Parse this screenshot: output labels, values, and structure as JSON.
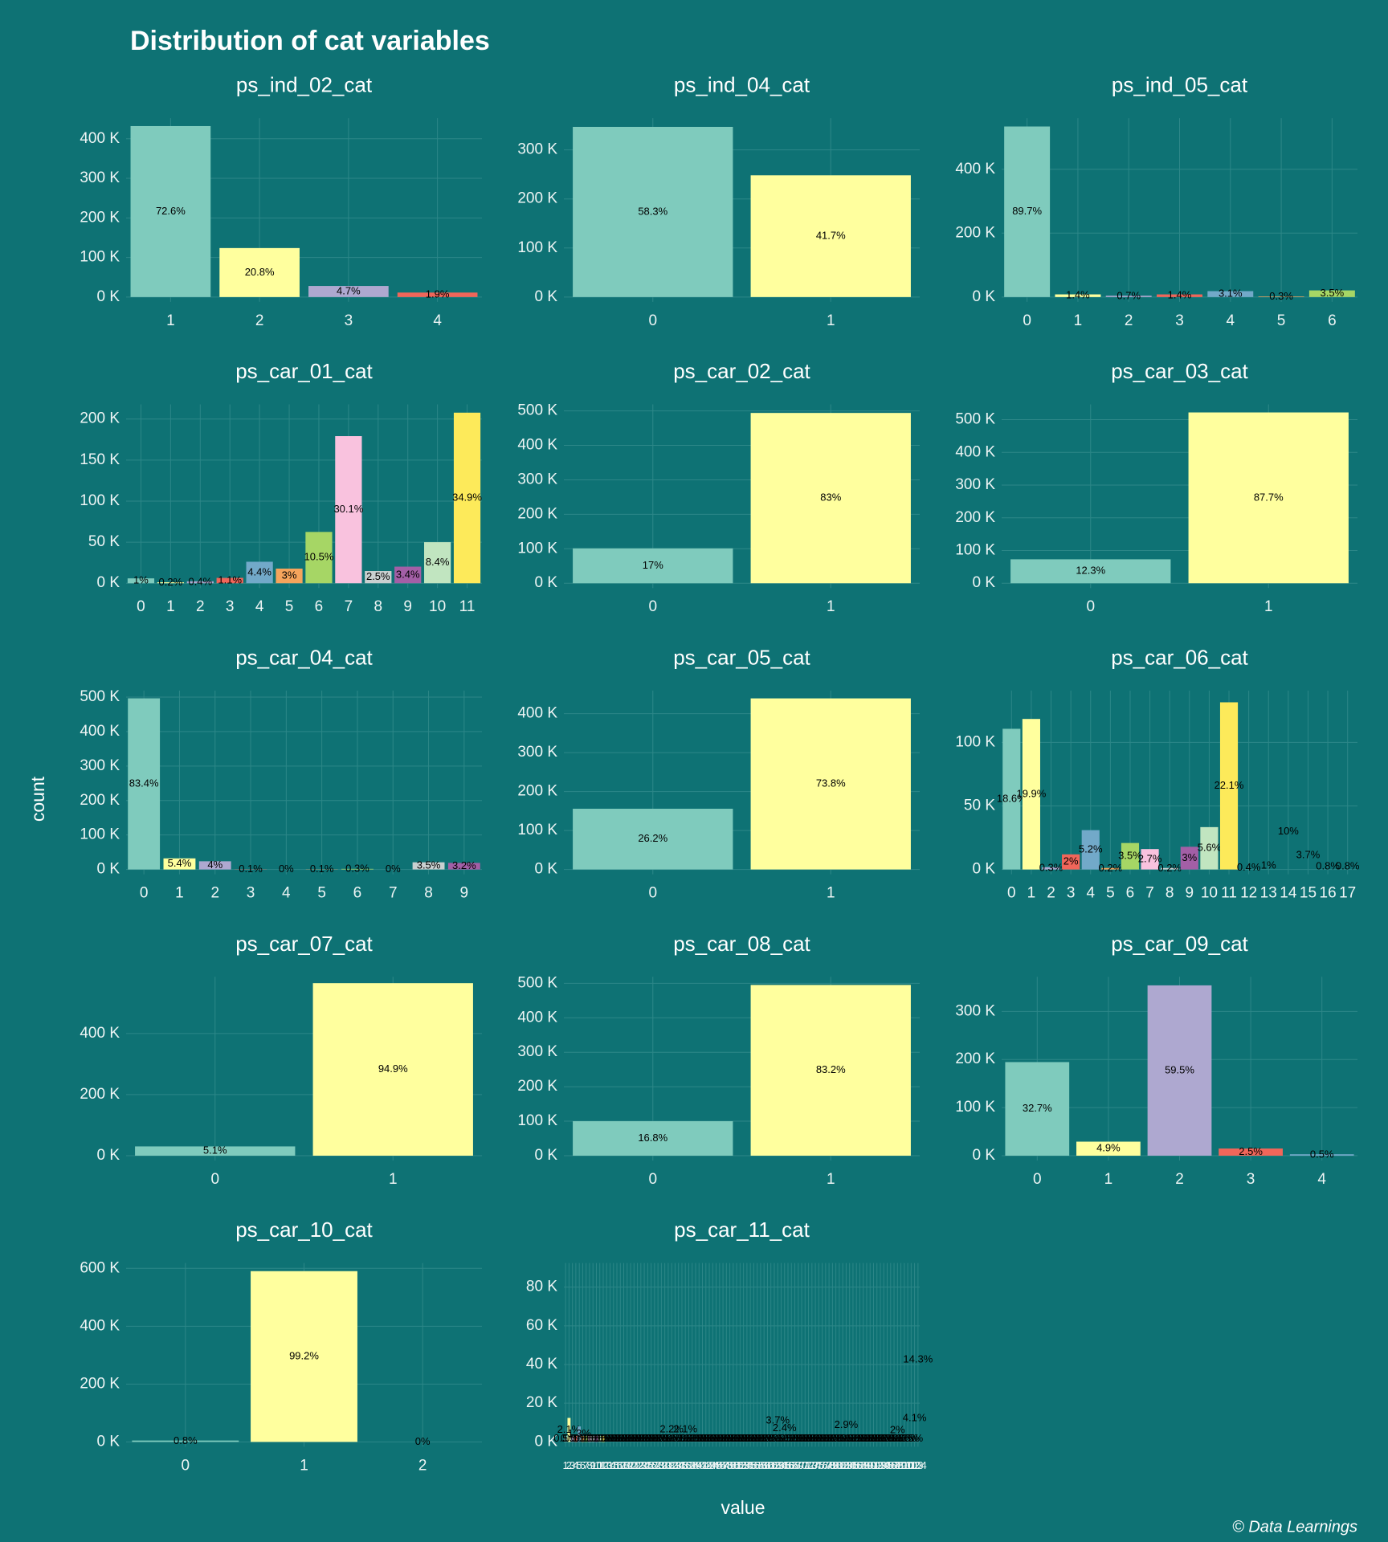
{
  "title": "Distribution of cat variables",
  "x_label": "value",
  "y_label": "count",
  "caption": "© Data Learnings",
  "palette": [
    "#7fcbbd",
    "#ffff9e",
    "#aea8d0",
    "#f0665a",
    "#72a9c9",
    "#f5a45c",
    "#a6d665",
    "#f9c2de",
    "#c9d0d0",
    "#a35fa6",
    "#c1e5c0",
    "#fdea5a"
  ],
  "chart_data": [
    {
      "type": "bar",
      "title": "ps_ind_02_cat",
      "categories": [
        1,
        2,
        3,
        4
      ],
      "values": [
        432100,
        123800,
        28000,
        11300
      ],
      "percent_labels": [
        "72.6%",
        "20.8%",
        "4.7%",
        "1.9%"
      ],
      "ylim": [
        0,
        440000
      ],
      "yticks": [
        {
          "value": 0,
          "label": "0 K"
        },
        {
          "value": 100000,
          "label": "100 K"
        },
        {
          "value": 200000,
          "label": "200 K"
        },
        {
          "value": 300000,
          "label": "300 K"
        },
        {
          "value": 400000,
          "label": "400 K"
        }
      ],
      "grid": true
    },
    {
      "type": "bar",
      "title": "ps_ind_04_cat",
      "categories": [
        0,
        1
      ],
      "values": [
        347000,
        248200
      ],
      "percent_labels": [
        "58.3%",
        "41.7%"
      ],
      "ylim": [
        0,
        355000
      ],
      "yticks": [
        {
          "value": 0,
          "label": "0 K"
        },
        {
          "value": 100000,
          "label": "100 K"
        },
        {
          "value": 200000,
          "label": "200 K"
        },
        {
          "value": 300000,
          "label": "300 K"
        }
      ],
      "grid": true
    },
    {
      "type": "bar",
      "title": "ps_ind_05_cat",
      "categories": [
        0,
        1,
        2,
        3,
        4,
        5,
        6
      ],
      "values": [
        533900,
        8300,
        4200,
        8300,
        18500,
        1800,
        20800
      ],
      "percent_labels": [
        "89.7%",
        "1.4%",
        "0.7%",
        "1.4%",
        "3.1%",
        "0.3%",
        "3.5%"
      ],
      "ylim": [
        0,
        545000
      ],
      "yticks": [
        {
          "value": 0,
          "label": "0 K"
        },
        {
          "value": 200000,
          "label": "200 K"
        },
        {
          "value": 400000,
          "label": "400 K"
        }
      ],
      "grid": true
    },
    {
      "type": "bar",
      "title": "ps_car_01_cat",
      "categories": [
        0,
        1,
        2,
        3,
        4,
        5,
        6,
        7,
        8,
        9,
        10,
        11
      ],
      "values": [
        5950,
        1190,
        2380,
        6550,
        26190,
        17860,
        62500,
        179160,
        14880,
        20240,
        50000,
        207730
      ],
      "percent_labels": [
        "1%",
        "0.2%",
        "0.4%",
        "1.1%",
        "4.4%",
        "3%",
        "10.5%",
        "30.1%",
        "2.5%",
        "3.4%",
        "8.4%",
        "34.9%"
      ],
      "ylim": [
        0,
        212000
      ],
      "yticks": [
        {
          "value": 0,
          "label": "0 K"
        },
        {
          "value": 50000,
          "label": "50 K"
        },
        {
          "value": 100000,
          "label": "100 K"
        },
        {
          "value": 150000,
          "label": "150 K"
        },
        {
          "value": 200000,
          "label": "200 K"
        }
      ],
      "grid": true
    },
    {
      "type": "bar",
      "title": "ps_car_02_cat",
      "categories": [
        0,
        1
      ],
      "values": [
        101190,
        494030
      ],
      "percent_labels": [
        "17%",
        "83%"
      ],
      "ylim": [
        0,
        505000
      ],
      "yticks": [
        {
          "value": 0,
          "label": "0 K"
        },
        {
          "value": 100000,
          "label": "100 K"
        },
        {
          "value": 200000,
          "label": "200 K"
        },
        {
          "value": 300000,
          "label": "300 K"
        },
        {
          "value": 400000,
          "label": "400 K"
        },
        {
          "value": 500000,
          "label": "500 K"
        }
      ],
      "grid": true
    },
    {
      "type": "bar",
      "title": "ps_car_03_cat",
      "categories": [
        0,
        1
      ],
      "values": [
        73210,
        522000
      ],
      "percent_labels": [
        "12.3%",
        "87.7%"
      ],
      "ylim": [
        0,
        532000
      ],
      "yticks": [
        {
          "value": 0,
          "label": "0 K"
        },
        {
          "value": 100000,
          "label": "100 K"
        },
        {
          "value": 200000,
          "label": "200 K"
        },
        {
          "value": 300000,
          "label": "300 K"
        },
        {
          "value": 400000,
          "label": "400 K"
        },
        {
          "value": 500000,
          "label": "500 K"
        }
      ],
      "grid": true
    },
    {
      "type": "bar",
      "title": "ps_car_04_cat",
      "categories": [
        0,
        1,
        2,
        3,
        4,
        5,
        6,
        7,
        8,
        9
      ],
      "values": [
        496400,
        32140,
        23810,
        600,
        0,
        600,
        1790,
        0,
        20830,
        19050
      ],
      "percent_labels": [
        "83.4%",
        "5.4%",
        "4%",
        "0.1%",
        "0%",
        "0.1%",
        "0.3%",
        "0%",
        "3.5%",
        "3.2%"
      ],
      "ylim": [
        0,
        505000
      ],
      "yticks": [
        {
          "value": 0,
          "label": "0 K"
        },
        {
          "value": 100000,
          "label": "100 K"
        },
        {
          "value": 200000,
          "label": "200 K"
        },
        {
          "value": 300000,
          "label": "300 K"
        },
        {
          "value": 400000,
          "label": "400 K"
        },
        {
          "value": 500000,
          "label": "500 K"
        }
      ],
      "grid": true
    },
    {
      "type": "bar",
      "title": "ps_car_05_cat",
      "categories": [
        0,
        1
      ],
      "values": [
        155950,
        439260
      ],
      "percent_labels": [
        "26.2%",
        "73.8%"
      ],
      "ylim": [
        0,
        447000
      ],
      "yticks": [
        {
          "value": 0,
          "label": "0 K"
        },
        {
          "value": 100000,
          "label": "100 K"
        },
        {
          "value": 200000,
          "label": "200 K"
        },
        {
          "value": 300000,
          "label": "300 K"
        },
        {
          "value": 400000,
          "label": "400 K"
        }
      ],
      "grid": true
    },
    {
      "type": "bar",
      "title": "ps_car_06_cat",
      "categories": [
        0,
        1,
        2,
        3,
        4,
        5,
        6,
        7,
        8,
        9,
        10,
        11,
        12,
        13,
        14,
        15,
        16,
        17
      ],
      "values": [
        110700,
        118450,
        1790,
        11900,
        30950,
        1190,
        20830,
        16070,
        1190,
        17860,
        33330,
        131540,
        2380,
        5950,
        59520,
        22020,
        4760,
        4760
      ],
      "percent_labels": [
        "18.6%",
        "19.9%",
        "0.3%",
        "2%",
        "5.2%",
        "0.2%",
        "3.5%",
        "2.7%",
        "0.2%",
        "3%",
        "5.6%",
        "22.1%",
        "0.4%",
        "1%",
        "10%",
        "3.7%",
        "0.8%",
        "0.8%"
      ],
      "ylim": [
        0,
        137000
      ],
      "yticks": [
        {
          "value": 0,
          "label": "0 K"
        },
        {
          "value": 50000,
          "label": "50 K"
        },
        {
          "value": 100000,
          "label": "100 K"
        }
      ],
      "grid": true
    },
    {
      "type": "bar",
      "title": "ps_car_07_cat",
      "categories": [
        0,
        1
      ],
      "values": [
        30360,
        564860
      ],
      "percent_labels": [
        "5.1%",
        "94.9%"
      ],
      "ylim": [
        0,
        570000
      ],
      "yticks": [
        {
          "value": 0,
          "label": "0 K"
        },
        {
          "value": 200000,
          "label": "200 K"
        },
        {
          "value": 400000,
          "label": "400 K"
        }
      ],
      "grid": true
    },
    {
      "type": "bar",
      "title": "ps_car_08_cat",
      "categories": [
        0,
        1
      ],
      "values": [
        100000,
        495220
      ],
      "percent_labels": [
        "16.8%",
        "83.2%"
      ],
      "ylim": [
        0,
        505000
      ],
      "yticks": [
        {
          "value": 0,
          "label": "0 K"
        },
        {
          "value": 100000,
          "label": "100 K"
        },
        {
          "value": 200000,
          "label": "200 K"
        },
        {
          "value": 300000,
          "label": "300 K"
        },
        {
          "value": 400000,
          "label": "400 K"
        },
        {
          "value": 500000,
          "label": "500 K"
        }
      ],
      "grid": true
    },
    {
      "type": "bar",
      "title": "ps_car_09_cat",
      "categories": [
        0,
        1,
        2,
        3,
        4
      ],
      "values": [
        194630,
        29170,
        354150,
        14880,
        2980
      ],
      "percent_labels": [
        "32.7%",
        "4.9%",
        "59.5%",
        "2.5%",
        "0.5%"
      ],
      "ylim": [
        0,
        362000
      ],
      "yticks": [
        {
          "value": 0,
          "label": "0 K"
        },
        {
          "value": 100000,
          "label": "100 K"
        },
        {
          "value": 200000,
          "label": "200 K"
        },
        {
          "value": 300000,
          "label": "300 K"
        }
      ],
      "grid": true
    },
    {
      "type": "bar",
      "title": "ps_car_10_cat",
      "categories": [
        0,
        1,
        2
      ],
      "values": [
        4760,
        590450,
        0
      ],
      "percent_labels": [
        "0.8%",
        "99.2%",
        "0%"
      ],
      "ylim": [
        0,
        602000
      ],
      "yticks": [
        {
          "value": 0,
          "label": "0 K"
        },
        {
          "value": 200000,
          "label": "200 K"
        },
        {
          "value": 400000,
          "label": "400 K"
        },
        {
          "value": 600000,
          "label": "600 K"
        }
      ],
      "grid": true
    },
    {
      "type": "bar",
      "title": "ps_car_11_cat",
      "categories": [
        1,
        2,
        3,
        4,
        5,
        6,
        7,
        8,
        9,
        10,
        11,
        12,
        13,
        14,
        15,
        16,
        17,
        18,
        19,
        20,
        21,
        22,
        23,
        24,
        25,
        26,
        27,
        28,
        29,
        30,
        31,
        32,
        33,
        34,
        35,
        36,
        37,
        38,
        39,
        40,
        41,
        42,
        43,
        44,
        45,
        46,
        47,
        48,
        49,
        50,
        51,
        52,
        53,
        54,
        55,
        56,
        57,
        58,
        59,
        60,
        61,
        62,
        63,
        64,
        65,
        66,
        67,
        68,
        69,
        70,
        71,
        72,
        73,
        74,
        75,
        76,
        77,
        78,
        79,
        80,
        81,
        82,
        83,
        84,
        85,
        86,
        87,
        88,
        89,
        90,
        91,
        92,
        93,
        94,
        95,
        96,
        97,
        98,
        99,
        100,
        101,
        102,
        103,
        104
      ],
      "values": [
        3000,
        12400,
        3000,
        3000,
        8000,
        3000,
        3000,
        3000,
        3000,
        3000,
        3000,
        3000,
        3000,
        3000,
        3000,
        3000,
        3000,
        3000,
        3000,
        3000,
        3000,
        3000,
        3000,
        3000,
        3000,
        3000,
        3000,
        3000,
        3000,
        3000,
        3000,
        12800,
        3000,
        3000,
        3000,
        12500,
        3000,
        3000,
        3000,
        3000,
        3000,
        3000,
        3000,
        3000,
        3000,
        3000,
        3000,
        3000,
        3000,
        3000,
        3000,
        3000,
        3000,
        3000,
        3000,
        3000,
        3000,
        3000,
        3000,
        3000,
        3000,
        3000,
        22000,
        3000,
        14000,
        3000,
        3000,
        3000,
        3000,
        3000,
        3000,
        3000,
        3000,
        3000,
        3000,
        3000,
        3000,
        3000,
        3000,
        3000,
        3000,
        3000,
        17300,
        3000,
        3000,
        3000,
        3000,
        3000,
        3000,
        3000,
        3000,
        3000,
        3000,
        3000,
        3000,
        3000,
        3000,
        11900,
        3000,
        3000,
        3000,
        3000,
        24400,
        85100
      ],
      "percent_labels": [
        "0.5%",
        "2.1%",
        "0.5%",
        "0.5%",
        "1.3%",
        "0.5%",
        "0.5%",
        "0.5%",
        "0.5%",
        "0.5%",
        "0.5%",
        "0.5%",
        "0.5%",
        "0.5%",
        "0.5%",
        "0.5%",
        "0.5%",
        "0.5%",
        "0.5%",
        "0.5%",
        "0.5%",
        "0.5%",
        "0.5%",
        "0.5%",
        "0.5%",
        "0.5%",
        "0.5%",
        "0.5%",
        "0.5%",
        "0.5%",
        "0.5%",
        "2.2%",
        "0.5%",
        "0.5%",
        "0.5%",
        "2.1%",
        "0.5%",
        "0.5%",
        "0.5%",
        "0.5%",
        "0.5%",
        "0.5%",
        "0.5%",
        "0.5%",
        "0.5%",
        "0.5%",
        "0.5%",
        "0.5%",
        "0.5%",
        "0.5%",
        "0.5%",
        "0.5%",
        "0.5%",
        "0.5%",
        "0.5%",
        "0.5%",
        "0.5%",
        "0.5%",
        "0.5%",
        "0.5%",
        "0.5%",
        "0.5%",
        "3.7%",
        "0.5%",
        "2.4%",
        "0.5%",
        "0.5%",
        "0.5%",
        "0.5%",
        "0.5%",
        "0.5%",
        "0.5%",
        "0.5%",
        "0.5%",
        "0.5%",
        "0.5%",
        "0.5%",
        "0.5%",
        "0.5%",
        "0.5%",
        "0.5%",
        "0.5%",
        "2.9%",
        "0.5%",
        "0.5%",
        "0.5%",
        "0.5%",
        "0.5%",
        "0.5%",
        "0.5%",
        "0.5%",
        "0.5%",
        "0.5%",
        "0.5%",
        "0.5%",
        "0.5%",
        "0.5%",
        "2%",
        "0.5%",
        "0.5%",
        "0.5%",
        "0.5%",
        "4.1%",
        "14.3%"
      ],
      "ylim": [
        0,
        90000
      ],
      "yticks": [
        {
          "value": 0,
          "label": "0 K"
        },
        {
          "value": 20000,
          "label": "20 K"
        },
        {
          "value": 40000,
          "label": "40 K"
        },
        {
          "value": 60000,
          "label": "60 K"
        },
        {
          "value": 80000,
          "label": "80 K"
        }
      ],
      "grid": true
    }
  ]
}
